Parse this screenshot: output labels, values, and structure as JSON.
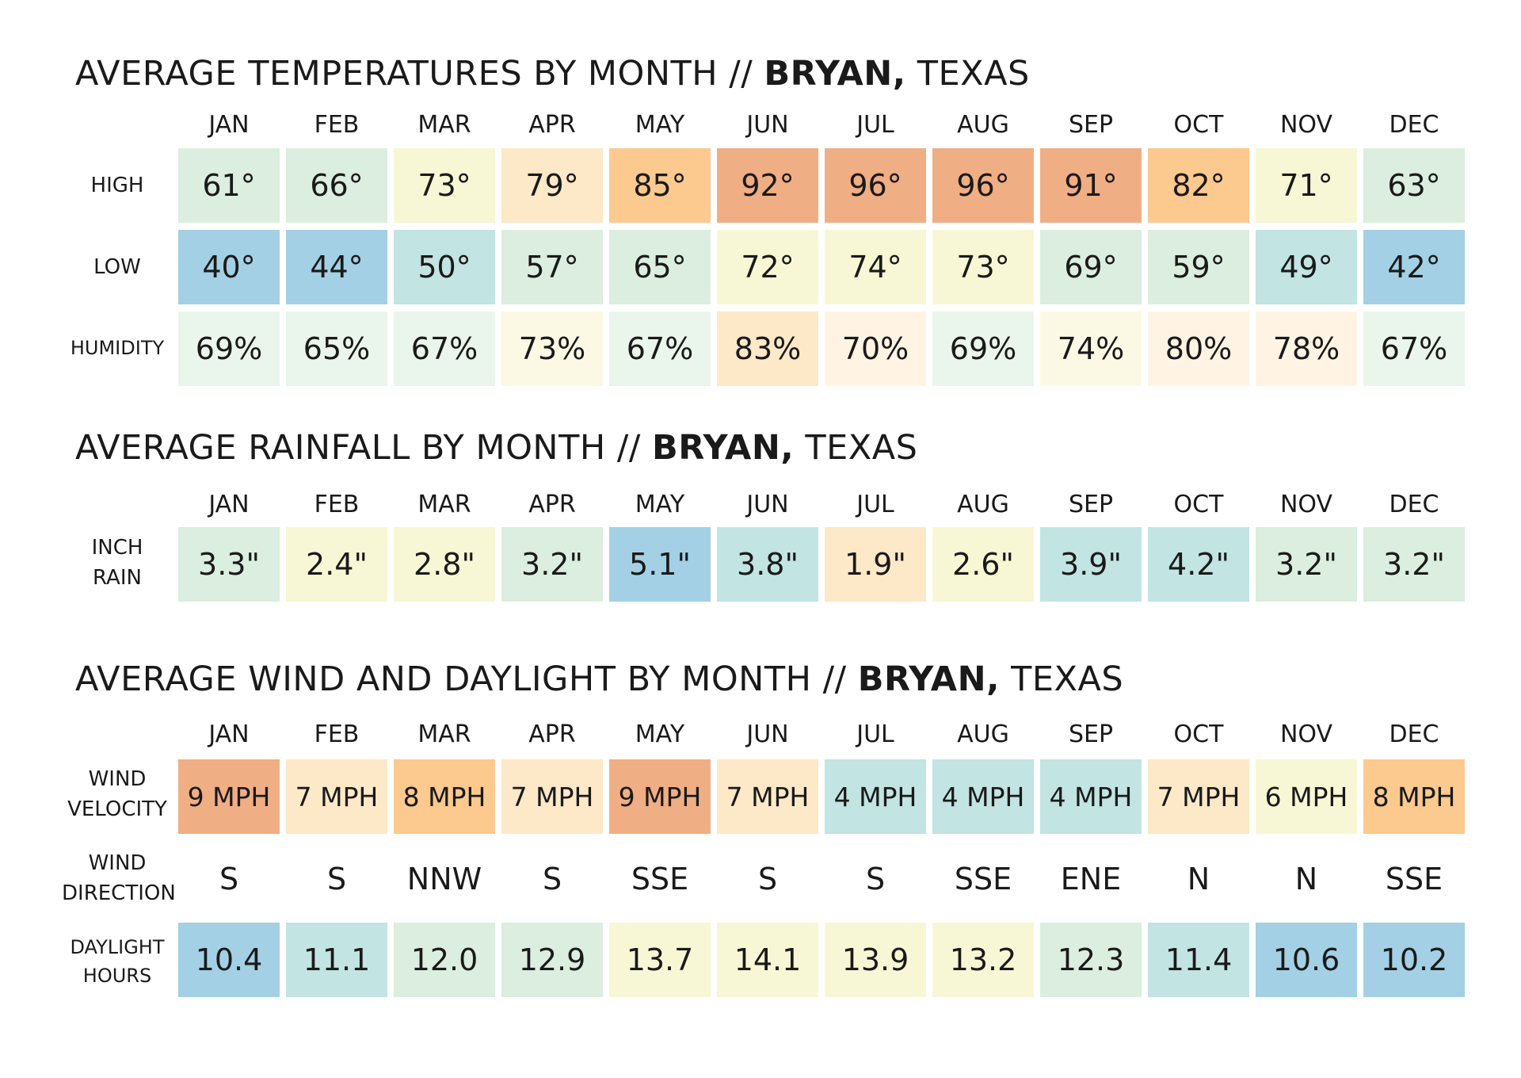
{
  "months": [
    "JAN",
    "FEB",
    "MAR",
    "APR",
    "MAY",
    "JUN",
    "JUL",
    "AUG",
    "SEP",
    "OCT",
    "NOV",
    "DEC"
  ],
  "colors": {
    "blue": "#a3d0e4",
    "teal": "#c2e4e2",
    "mint": "#dbeedf",
    "mint_light": "#eaf5ec",
    "pale_yellow": "#f7f7d5",
    "cream": "#fbf9e4",
    "peach_light": "#fff4e4",
    "peach": "#fde8c8",
    "light_orange": "#fdd8a8",
    "orange": "#fcc98e",
    "dark_orange": "#f0ae84"
  },
  "chart_data": [
    {
      "type": "table",
      "title_prefix": "AVERAGE TEMPERATURES BY MONTH // ",
      "title_city": "BRYAN,",
      "title_suffix": " TEXAS",
      "columns": [
        "JAN",
        "FEB",
        "MAR",
        "APR",
        "MAY",
        "JUN",
        "JUL",
        "AUG",
        "SEP",
        "OCT",
        "NOV",
        "DEC"
      ],
      "rows": [
        {
          "label": "HIGH",
          "values": [
            "61°",
            "66°",
            "73°",
            "79°",
            "85°",
            "92°",
            "96°",
            "96°",
            "91°",
            "82°",
            "71°",
            "63°"
          ],
          "colors": [
            "mint",
            "mint",
            "pale_yellow",
            "peach",
            "orange",
            "dark_orange",
            "dark_orange",
            "dark_orange",
            "dark_orange",
            "orange",
            "pale_yellow",
            "mint"
          ]
        },
        {
          "label": "LOW",
          "values": [
            "40°",
            "44°",
            "50°",
            "57°",
            "65°",
            "72°",
            "74°",
            "73°",
            "69°",
            "59°",
            "49°",
            "42°"
          ],
          "colors": [
            "blue",
            "blue",
            "teal",
            "mint",
            "mint",
            "pale_yellow",
            "pale_yellow",
            "pale_yellow",
            "mint",
            "mint",
            "teal",
            "blue"
          ]
        },
        {
          "label": "HUMIDITY",
          "values": [
            "69%",
            "65%",
            "67%",
            "73%",
            "67%",
            "83%",
            "70%",
            "69%",
            "74%",
            "80%",
            "78%",
            "67%"
          ],
          "colors": [
            "mint_light",
            "mint_light",
            "mint_light",
            "cream",
            "mint_light",
            "peach",
            "peach_light",
            "mint_light",
            "cream",
            "peach_light",
            "peach_light",
            "mint_light"
          ]
        }
      ]
    },
    {
      "type": "table",
      "title_prefix": "AVERAGE RAINFALL BY MONTH // ",
      "title_city": "BRYAN,",
      "title_suffix": " TEXAS",
      "columns": [
        "JAN",
        "FEB",
        "MAR",
        "APR",
        "MAY",
        "JUN",
        "JUL",
        "AUG",
        "SEP",
        "OCT",
        "NOV",
        "DEC"
      ],
      "rows": [
        {
          "label_line1": "INCH",
          "label_line2": "RAIN",
          "values": [
            "3.3\"",
            "2.4\"",
            "2.8\"",
            "3.2\"",
            "5.1\"",
            "3.8\"",
            "1.9\"",
            "2.6\"",
            "3.9\"",
            "4.2\"",
            "3.2\"",
            "3.2\""
          ],
          "colors": [
            "mint",
            "pale_yellow",
            "pale_yellow",
            "mint",
            "blue",
            "teal",
            "peach",
            "pale_yellow",
            "teal",
            "teal",
            "mint",
            "mint"
          ]
        }
      ]
    },
    {
      "type": "table",
      "title_prefix": "AVERAGE WIND AND DAYLIGHT BY MONTH // ",
      "title_city": "BRYAN,",
      "title_suffix": " TEXAS",
      "columns": [
        "JAN",
        "FEB",
        "MAR",
        "APR",
        "MAY",
        "JUN",
        "JUL",
        "AUG",
        "SEP",
        "OCT",
        "NOV",
        "DEC"
      ],
      "rows": [
        {
          "label_line1": "WIND",
          "label_line2": "VELOCITY",
          "values": [
            "9 MPH",
            "7 MPH",
            "8 MPH",
            "7 MPH",
            "9 MPH",
            "7 MPH",
            "4 MPH",
            "4 MPH",
            "4 MPH",
            "7 MPH",
            "6 MPH",
            "8 MPH"
          ],
          "colors": [
            "dark_orange",
            "peach",
            "orange",
            "peach",
            "dark_orange",
            "peach",
            "teal",
            "teal",
            "teal",
            "peach",
            "pale_yellow",
            "orange"
          ]
        },
        {
          "label_line1": "WIND",
          "label_line2": "DIRECTION",
          "values": [
            "S",
            "S",
            "NNW",
            "S",
            "SSE",
            "S",
            "S",
            "SSE",
            "ENE",
            "N",
            "N",
            "SSE"
          ]
        },
        {
          "label_line1": "DAYLIGHT",
          "label_line2": "HOURS",
          "values": [
            "10.4",
            "11.1",
            "12.0",
            "12.9",
            "13.7",
            "14.1",
            "13.9",
            "13.2",
            "12.3",
            "11.4",
            "10.6",
            "10.2"
          ],
          "colors": [
            "blue",
            "teal",
            "mint",
            "mint",
            "pale_yellow",
            "pale_yellow",
            "pale_yellow",
            "pale_yellow",
            "mint",
            "teal",
            "blue",
            "blue"
          ]
        }
      ]
    }
  ]
}
